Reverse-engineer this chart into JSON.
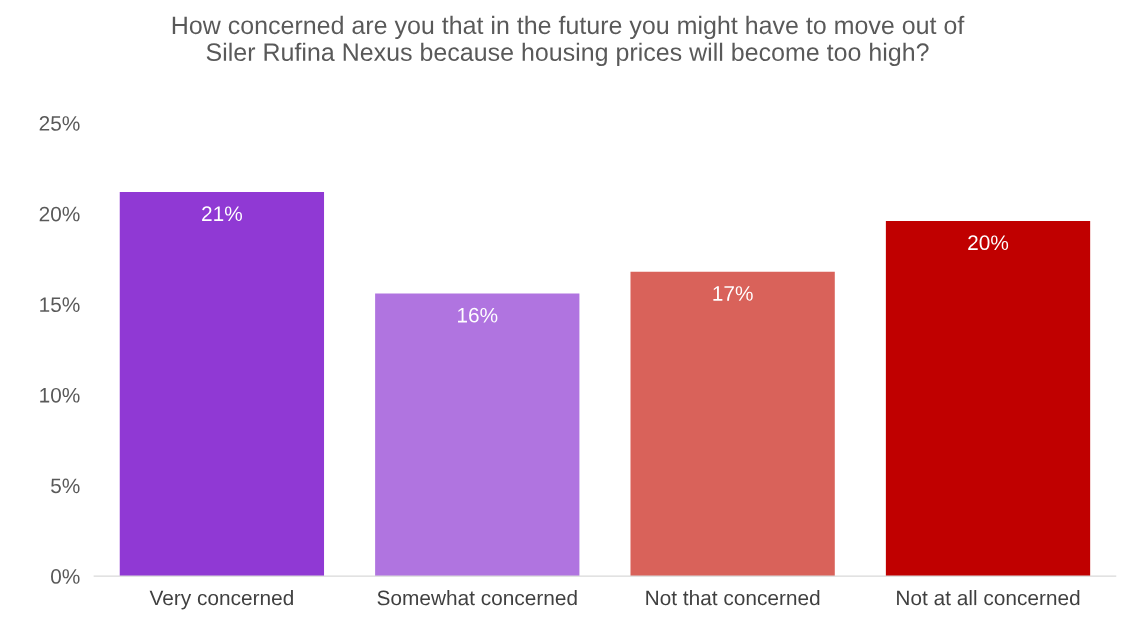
{
  "chart_data": {
    "type": "bar",
    "title": "How concerned are you that in the future you might have to move out of\nSiler Rufina Nexus because housing prices will become too high?",
    "categories": [
      "Very concerned",
      "Somewhat concerned",
      "Not that concerned",
      "Not at all concerned"
    ],
    "values": [
      21.2,
      15.6,
      16.8,
      19.6
    ],
    "colors": [
      "#9039d4",
      "#b074e0",
      "#d9625a",
      "#c00000"
    ],
    "value_labels": [
      "21%",
      "16%",
      "17%",
      "20%"
    ],
    "ylim": [
      0,
      25
    ],
    "yticks": [
      {
        "value": 0,
        "label": "0%"
      },
      {
        "value": 5,
        "label": "5%"
      },
      {
        "value": 10,
        "label": "10%"
      },
      {
        "value": 15,
        "label": "15%"
      },
      {
        "value": 20,
        "label": "20%"
      },
      {
        "value": 25,
        "label": "25%"
      }
    ],
    "grid": false,
    "legend": false
  }
}
